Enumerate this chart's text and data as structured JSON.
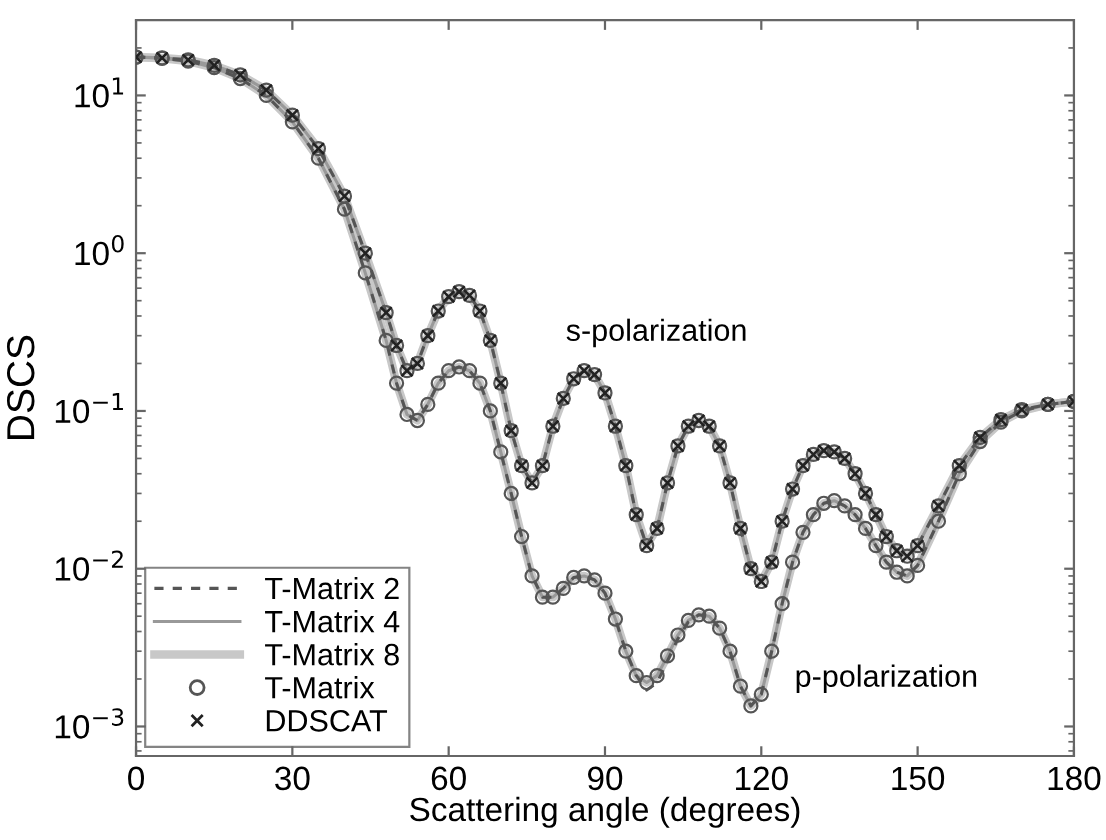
{
  "chart_data": {
    "type": "line",
    "xlabel": "Scattering angle (degrees)",
    "ylabel": "DSCS",
    "x": [
      0,
      5,
      10,
      15,
      20,
      25,
      30,
      35,
      40,
      44,
      48,
      50,
      52,
      54,
      56,
      58,
      60,
      62,
      64,
      66,
      68,
      70,
      72,
      74,
      76,
      78,
      80,
      82,
      84,
      86,
      88,
      90,
      92,
      94,
      96,
      98,
      100,
      102,
      104,
      106,
      108,
      110,
      112,
      114,
      116,
      118,
      120,
      122,
      124,
      126,
      128,
      130,
      132,
      134,
      136,
      138,
      140,
      142,
      144,
      146,
      148,
      150,
      154,
      158,
      162,
      166,
      170,
      175,
      180
    ],
    "log": "y",
    "xlim": [
      0,
      180
    ],
    "xticks": [
      0,
      30,
      60,
      90,
      120,
      150,
      180
    ],
    "ylim": [
      0.00065,
      30
    ],
    "yticks": [
      {
        "value": 0.001,
        "label": "10$^{−3}$"
      },
      {
        "value": 0.01,
        "label": "10$^{−2}$"
      },
      {
        "value": 0.1,
        "label": "10$^{−1}$"
      },
      {
        "value": 1,
        "label": "10$^{0}$"
      },
      {
        "value": 10,
        "label": "10$^{1}$"
      }
    ],
    "grid": false,
    "legend": "bottom left",
    "annotations": [
      "s-polarization",
      "p-polarization"
    ],
    "series": [
      {
        "name": "T-Matrix 2",
        "color": "#555555",
        "line_style": "dashed",
        "values": [
          17.5,
          17.3,
          16.8,
          15.5,
          13.5,
          10.8,
          7.5,
          4.6,
          2.3,
          1.0,
          0.42,
          0.26,
          0.18,
          0.2,
          0.3,
          0.43,
          0.53,
          0.57,
          0.54,
          0.43,
          0.28,
          0.15,
          0.075,
          0.045,
          0.035,
          0.045,
          0.08,
          0.12,
          0.16,
          0.18,
          0.17,
          0.13,
          0.08,
          0.045,
          0.022,
          0.014,
          0.018,
          0.035,
          0.06,
          0.08,
          0.087,
          0.08,
          0.06,
          0.035,
          0.018,
          0.01,
          0.0083,
          0.011,
          0.02,
          0.032,
          0.045,
          0.053,
          0.056,
          0.055,
          0.05,
          0.04,
          0.03,
          0.022,
          0.016,
          0.013,
          0.012,
          0.014,
          0.025,
          0.045,
          0.068,
          0.088,
          0.102,
          0.11,
          0.115
        ]
      },
      {
        "color": "#555555",
        "line_style": "dashed",
        "values": [
          17.5,
          17.2,
          16.5,
          15,
          12.8,
          10,
          6.8,
          4.0,
          1.9,
          0.75,
          0.28,
          0.15,
          0.095,
          0.087,
          0.11,
          0.15,
          0.18,
          0.19,
          0.18,
          0.15,
          0.1,
          0.055,
          0.03,
          0.016,
          0.009,
          0.0066,
          0.0066,
          0.0075,
          0.0088,
          0.009,
          0.0085,
          0.007,
          0.0048,
          0.003,
          0.0021,
          0.0017,
          0.0019,
          0.0026,
          0.0036,
          0.0046,
          0.0051,
          0.005,
          0.0042,
          0.003,
          0.0018,
          0.00135,
          0.0016,
          0.003,
          0.006,
          0.011,
          0.017,
          0.022,
          0.026,
          0.027,
          0.025,
          0.022,
          0.018,
          0.014,
          0.011,
          0.0095,
          0.009,
          0.0105,
          0.02,
          0.04,
          0.064,
          0.085,
          0.1,
          0.11,
          0.115
        ]
      },
      {
        "name": "T-Matrix 4",
        "color": "#999999",
        "line_style": "solid",
        "values": [
          17.5,
          17.3,
          16.8,
          15.5,
          13.5,
          10.8,
          7.5,
          4.6,
          2.3,
          1.0,
          0.42,
          0.26,
          0.18,
          0.2,
          0.3,
          0.43,
          0.53,
          0.57,
          0.54,
          0.43,
          0.28,
          0.15,
          0.075,
          0.045,
          0.035,
          0.045,
          0.08,
          0.12,
          0.16,
          0.18,
          0.17,
          0.13,
          0.08,
          0.045,
          0.022,
          0.014,
          0.018,
          0.035,
          0.06,
          0.08,
          0.087,
          0.08,
          0.06,
          0.035,
          0.018,
          0.01,
          0.0083,
          0.011,
          0.02,
          0.032,
          0.045,
          0.053,
          0.056,
          0.055,
          0.05,
          0.04,
          0.03,
          0.022,
          0.016,
          0.013,
          0.012,
          0.014,
          0.025,
          0.045,
          0.068,
          0.088,
          0.102,
          0.11,
          0.115
        ]
      },
      {
        "color": "#999999",
        "line_style": "solid",
        "values": [
          17.5,
          17.2,
          16.5,
          15,
          12.8,
          10,
          6.8,
          4.0,
          1.9,
          0.75,
          0.28,
          0.15,
          0.095,
          0.087,
          0.11,
          0.15,
          0.18,
          0.19,
          0.18,
          0.15,
          0.1,
          0.055,
          0.03,
          0.016,
          0.009,
          0.0066,
          0.0066,
          0.0075,
          0.0088,
          0.009,
          0.0085,
          0.007,
          0.0048,
          0.003,
          0.0021,
          0.0019,
          0.0021,
          0.0028,
          0.0038,
          0.0047,
          0.0051,
          0.005,
          0.0042,
          0.003,
          0.0018,
          0.00135,
          0.0016,
          0.003,
          0.006,
          0.011,
          0.017,
          0.022,
          0.026,
          0.027,
          0.025,
          0.022,
          0.018,
          0.014,
          0.011,
          0.0095,
          0.009,
          0.0105,
          0.02,
          0.04,
          0.064,
          0.085,
          0.1,
          0.11,
          0.115
        ]
      },
      {
        "name": "T-Matrix 8",
        "color": "#c8c8c8",
        "line_style": "solid",
        "values": [
          17.5,
          17.3,
          16.8,
          15.5,
          13.5,
          10.8,
          7.5,
          4.6,
          2.3,
          1.0,
          0.42,
          0.26,
          0.18,
          0.2,
          0.3,
          0.43,
          0.53,
          0.57,
          0.54,
          0.43,
          0.28,
          0.15,
          0.075,
          0.045,
          0.035,
          0.045,
          0.08,
          0.12,
          0.16,
          0.18,
          0.17,
          0.13,
          0.08,
          0.045,
          0.022,
          0.014,
          0.018,
          0.035,
          0.06,
          0.08,
          0.087,
          0.08,
          0.06,
          0.035,
          0.018,
          0.01,
          0.0083,
          0.011,
          0.02,
          0.032,
          0.045,
          0.053,
          0.056,
          0.055,
          0.05,
          0.04,
          0.03,
          0.022,
          0.016,
          0.013,
          0.012,
          0.014,
          0.025,
          0.045,
          0.068,
          0.088,
          0.102,
          0.11,
          0.115
        ]
      },
      {
        "color": "#c8c8c8",
        "line_style": "solid",
        "values": [
          17.5,
          17.2,
          16.5,
          15,
          12.8,
          10,
          6.8,
          4.0,
          1.9,
          0.75,
          0.28,
          0.15,
          0.095,
          0.087,
          0.11,
          0.15,
          0.18,
          0.19,
          0.18,
          0.15,
          0.1,
          0.055,
          0.03,
          0.016,
          0.009,
          0.0066,
          0.0066,
          0.0075,
          0.0088,
          0.009,
          0.0085,
          0.007,
          0.0048,
          0.003,
          0.0021,
          0.0019,
          0.0021,
          0.0028,
          0.0038,
          0.0047,
          0.0051,
          0.005,
          0.0042,
          0.003,
          0.0018,
          0.00135,
          0.0016,
          0.003,
          0.006,
          0.011,
          0.017,
          0.022,
          0.026,
          0.027,
          0.025,
          0.022,
          0.018,
          0.014,
          0.011,
          0.0095,
          0.009,
          0.0105,
          0.02,
          0.04,
          0.064,
          0.085,
          0.1,
          0.11,
          0.115
        ]
      },
      {
        "name": "T-Matrix",
        "type": "scatter",
        "color": "#555555",
        "marker": "circle",
        "values": [
          17.5,
          17.3,
          16.8,
          15.5,
          13.5,
          10.8,
          7.5,
          4.6,
          2.3,
          1.0,
          0.42,
          0.26,
          0.18,
          0.2,
          0.3,
          0.43,
          0.53,
          0.57,
          0.54,
          0.43,
          0.28,
          0.15,
          0.075,
          0.045,
          0.035,
          0.045,
          0.08,
          0.12,
          0.16,
          0.18,
          0.17,
          0.13,
          0.08,
          0.045,
          0.022,
          0.014,
          0.018,
          0.035,
          0.06,
          0.08,
          0.087,
          0.08,
          0.06,
          0.035,
          0.018,
          0.01,
          0.0083,
          0.011,
          0.02,
          0.032,
          0.045,
          0.053,
          0.056,
          0.055,
          0.05,
          0.04,
          0.03,
          0.022,
          0.016,
          0.013,
          0.012,
          0.014,
          0.025,
          0.045,
          0.068,
          0.088,
          0.102,
          0.11,
          0.115
        ]
      },
      {
        "type": "scatter",
        "color": "#555555",
        "marker": "circle",
        "values": [
          17.5,
          17.2,
          16.5,
          15,
          12.8,
          10,
          6.8,
          4.0,
          1.9,
          0.75,
          0.28,
          0.15,
          0.095,
          0.087,
          0.11,
          0.15,
          0.18,
          0.19,
          0.18,
          0.15,
          0.1,
          0.055,
          0.03,
          0.016,
          0.009,
          0.0066,
          0.0066,
          0.0075,
          0.0088,
          0.009,
          0.0085,
          0.007,
          0.0048,
          0.003,
          0.0021,
          0.0019,
          0.0021,
          0.0028,
          0.0038,
          0.0047,
          0.0051,
          0.005,
          0.0042,
          0.003,
          0.0018,
          0.00135,
          0.0016,
          0.003,
          0.006,
          0.011,
          0.017,
          0.022,
          0.026,
          0.027,
          0.025,
          0.022,
          0.018,
          0.014,
          0.011,
          0.0095,
          0.009,
          0.0105,
          0.02,
          0.04,
          0.064,
          0.085,
          0.1,
          0.11,
          0.115
        ]
      },
      {
        "name": "DDSCAT",
        "type": "scatter",
        "color": "#222222",
        "marker": "cross",
        "values": [
          17.5,
          17.3,
          16.8,
          15.5,
          13.5,
          10.8,
          7.5,
          4.6,
          2.3,
          1.0,
          0.42,
          0.26,
          0.18,
          0.2,
          0.3,
          0.43,
          0.53,
          0.57,
          0.54,
          0.43,
          0.28,
          0.15,
          0.075,
          0.045,
          0.035,
          0.045,
          0.08,
          0.12,
          0.16,
          0.18,
          0.17,
          0.13,
          0.08,
          0.045,
          0.022,
          0.014,
          0.018,
          0.035,
          0.06,
          0.08,
          0.087,
          0.08,
          0.06,
          0.035,
          0.018,
          0.01,
          0.0083,
          0.011,
          0.02,
          0.032,
          0.045,
          0.053,
          0.056,
          0.055,
          0.05,
          0.04,
          0.03,
          0.022,
          0.016,
          0.013,
          0.012,
          0.014,
          0.025,
          0.045,
          0.068,
          0.088,
          0.102,
          0.11,
          0.115
        ]
      }
    ]
  }
}
